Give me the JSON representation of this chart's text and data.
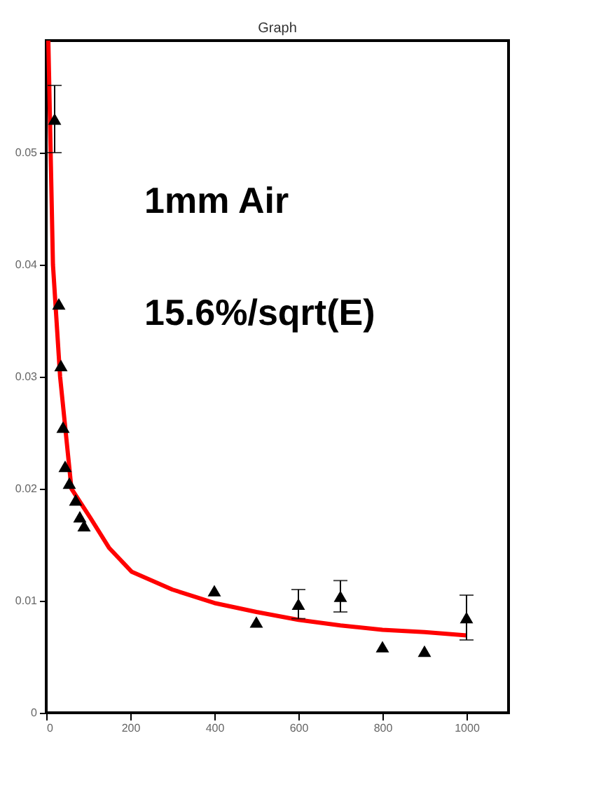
{
  "chart_data": {
    "type": "scatter",
    "title": "Graph",
    "annotations": [
      "1mm Air",
      "15.6%/sqrt(E)"
    ],
    "series": [
      {
        "color": "#000000",
        "marker": "triangle",
        "x": [
          20,
          30,
          35,
          40,
          45,
          55,
          70,
          80,
          90,
          400,
          500,
          600,
          700,
          800,
          900,
          1000
        ],
        "values": [
          0.053,
          0.0365,
          0.031,
          0.0255,
          0.022,
          0.0205,
          0.019,
          0.0175,
          0.0167,
          0.0109,
          0.0081,
          0.0097,
          0.0104,
          0.0059,
          0.0055,
          0.0085
        ],
        "errors": [
          0.003,
          null,
          null,
          null,
          null,
          null,
          null,
          null,
          null,
          null,
          null,
          0.0013,
          0.0014,
          null,
          null,
          0.002
        ]
      },
      {
        "type": "line",
        "color": "#ff0000",
        "marker": "none",
        "x": [
          5,
          16,
          33,
          60,
          105,
          150,
          203,
          300,
          400,
          500,
          600,
          700,
          800,
          900,
          1000
        ],
        "values": [
          0.06,
          0.04,
          0.03,
          0.02,
          0.0174,
          0.0147,
          0.0126,
          0.011,
          0.0098,
          0.009,
          0.0083,
          0.0078,
          0.0074,
          0.0072,
          0.0069
        ]
      }
    ],
    "xlim": [
      0,
      1100
    ],
    "xticks": [
      0,
      200,
      400,
      600,
      800,
      1000
    ],
    "ylim": [
      0,
      0.06
    ],
    "yticks": [
      0,
      0.01,
      0.02,
      0.03,
      0.04,
      0.05
    ],
    "grid": false
  }
}
